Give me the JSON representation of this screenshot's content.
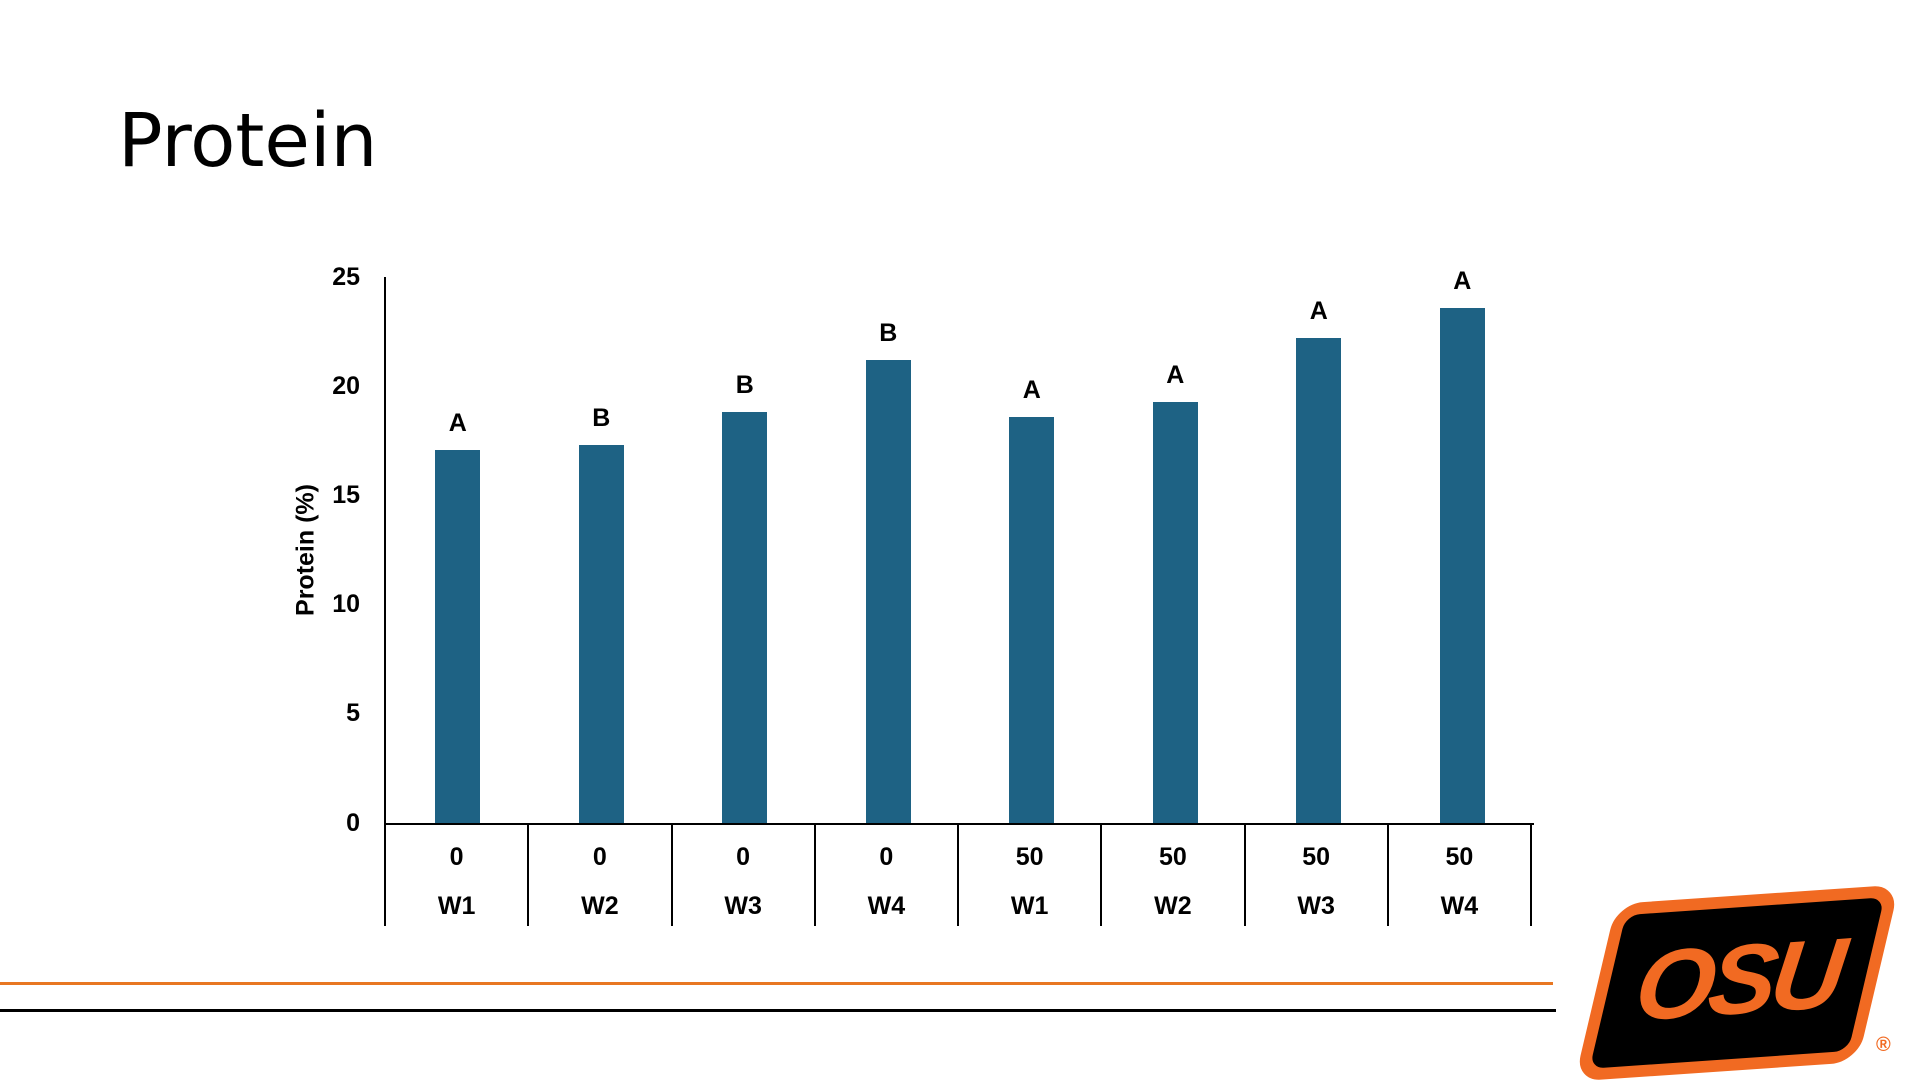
{
  "title": "Protein",
  "chart_data": {
    "type": "bar",
    "title": "Protein",
    "ylabel": "Protein (%)",
    "xlabel": "",
    "ylim": [
      0,
      25
    ],
    "yticks": [
      0,
      5,
      10,
      15,
      20,
      25
    ],
    "grid": false,
    "legend_position": "none",
    "bar_color": "#1e6284",
    "axis_color": "#000000",
    "categories": [
      "0 W1",
      "0 W2",
      "0 W3",
      "0 W4",
      "50 W1",
      "50 W2",
      "50 W3",
      "50 W4"
    ],
    "x_level1_treatment": [
      "0",
      "0",
      "0",
      "0",
      "50",
      "50",
      "50",
      "50"
    ],
    "x_level2_week": [
      "W1",
      "W2",
      "W3",
      "W4",
      "W1",
      "W2",
      "W3",
      "W4"
    ],
    "series": [
      {
        "name": "Protein (%)",
        "values": [
          17.1,
          17.3,
          18.8,
          21.2,
          18.6,
          19.3,
          22.2,
          23.6
        ]
      }
    ],
    "significance_letters": [
      "A",
      "B",
      "B",
      "B",
      "A",
      "A",
      "A",
      "A"
    ]
  },
  "footer": {
    "orange_line_color": "#e87722",
    "black_line_color": "#000000"
  },
  "logo": {
    "text": "OSU",
    "registered_mark": "®",
    "orange": "#f16a22",
    "black": "#000000"
  }
}
